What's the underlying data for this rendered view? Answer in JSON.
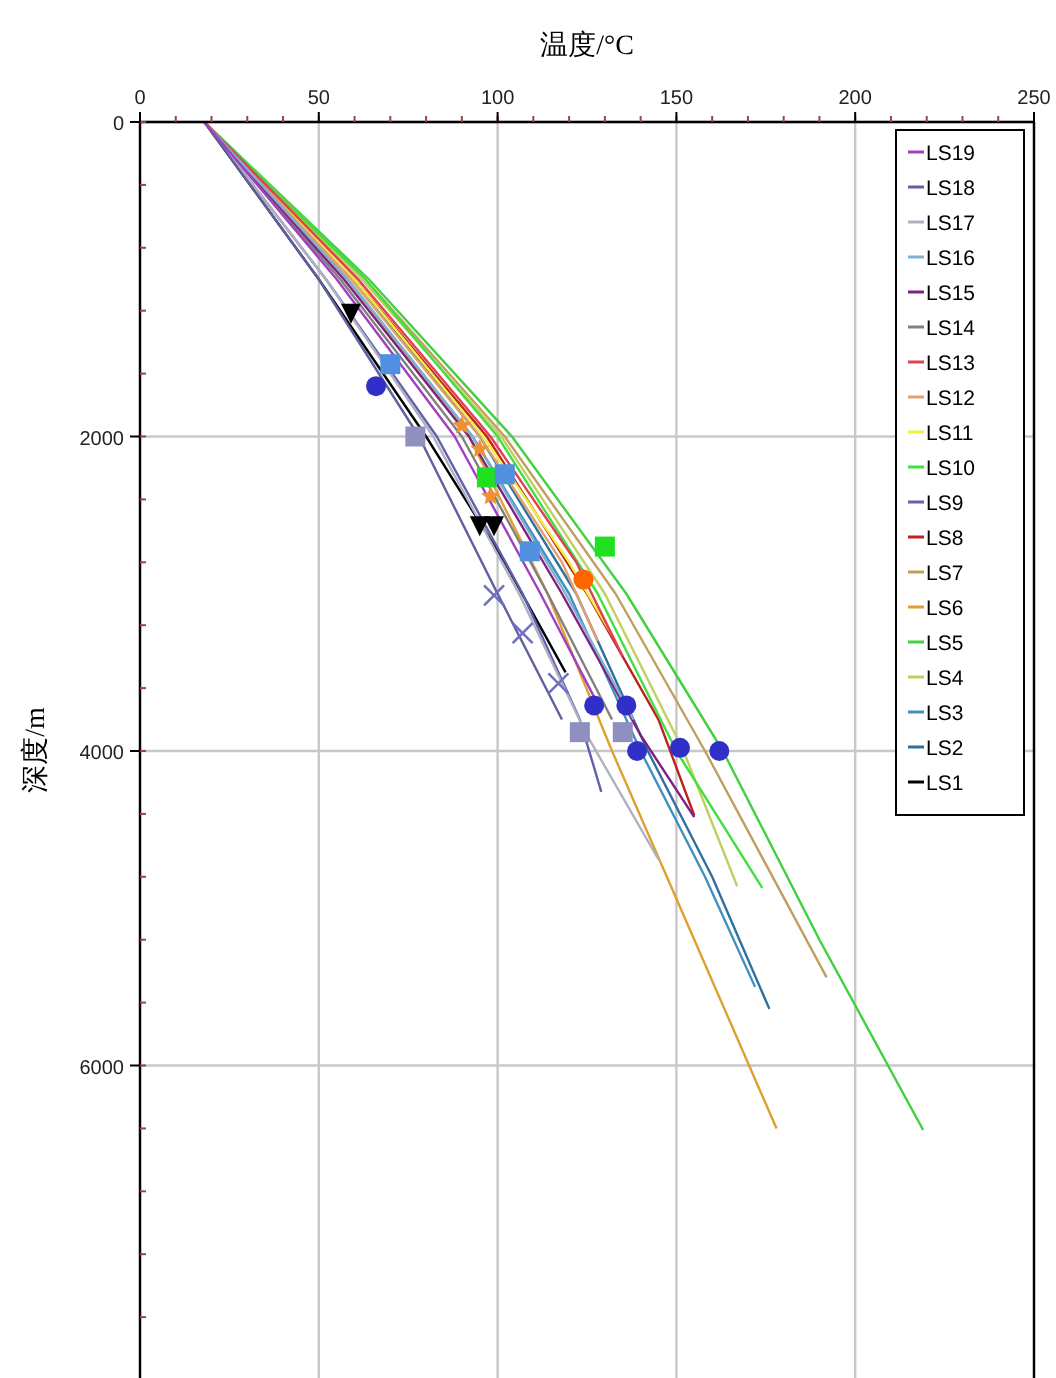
{
  "chart_data": {
    "type": "line",
    "xlabel": "温度/°C",
    "ylabel": "深度/m",
    "xlim": [
      0,
      250
    ],
    "xticks": [
      0,
      50,
      100,
      150,
      200,
      250
    ],
    "ylim": [
      8000,
      0
    ],
    "yticks": [
      0,
      2000,
      4000,
      6000
    ],
    "grid": true,
    "legend": "top right",
    "series": [
      {
        "name": "LS1",
        "color": "#000000",
        "x": [
          18,
          50,
          80,
          102,
          119
        ],
        "values": [
          0,
          1000,
          2000,
          2800,
          3500
        ]
      },
      {
        "name": "LS2",
        "color": "#3070a0",
        "x": [
          18,
          60,
          95,
          122,
          142,
          160,
          176
        ],
        "values": [
          0,
          1000,
          2000,
          3000,
          4000,
          4800,
          5640
        ]
      },
      {
        "name": "LS3",
        "color": "#4090c0",
        "x": [
          18,
          58,
          93,
          120,
          140,
          158,
          172
        ],
        "values": [
          0,
          1000,
          2000,
          3000,
          4000,
          4800,
          5500
        ]
      },
      {
        "name": "LS4",
        "color": "#c0d060",
        "x": [
          18,
          62,
          101,
          130,
          152,
          167
        ],
        "values": [
          0,
          1000,
          2000,
          3000,
          4000,
          4860
        ]
      },
      {
        "name": "LS5",
        "color": "#40d040",
        "x": [
          18,
          64,
          104,
          136,
          163,
          190,
          219
        ],
        "values": [
          0,
          1000,
          2000,
          3000,
          4000,
          5200,
          6410
        ]
      },
      {
        "name": "LS6",
        "color": "#e0a030",
        "x": [
          18,
          58,
          92,
          114,
          132,
          155,
          178
        ],
        "values": [
          0,
          1000,
          2000,
          3000,
          4000,
          5200,
          6400
        ]
      },
      {
        "name": "LS7",
        "color": "#c0a060",
        "x": [
          18,
          63,
          102,
          133,
          158,
          192
        ],
        "values": [
          0,
          1000,
          2000,
          3000,
          4000,
          5440
        ]
      },
      {
        "name": "LS8",
        "color": "#c02020",
        "x": [
          18,
          60,
          97,
          125,
          145,
          155
        ],
        "values": [
          0,
          1000,
          2000,
          3000,
          3800,
          4410
        ]
      },
      {
        "name": "LS9",
        "color": "#6060b0",
        "x": [
          18,
          52,
          83,
          107,
          123,
          129
        ],
        "values": [
          0,
          1000,
          2000,
          3000,
          3800,
          4260
        ]
      },
      {
        "name": "LS10",
        "color": "#40e040",
        "x": [
          18,
          63,
          100,
          128,
          150,
          174
        ],
        "values": [
          0,
          1000,
          2000,
          3000,
          4000,
          4870
        ]
      },
      {
        "name": "LS11",
        "color": "#f0f040",
        "x": [
          18,
          60,
          96,
          120,
          133
        ],
        "values": [
          0,
          1000,
          2000,
          2800,
          3300
        ]
      },
      {
        "name": "LS12",
        "color": "#e0a070",
        "x": [
          18,
          59,
          95,
          118,
          128
        ],
        "values": [
          0,
          1000,
          2000,
          2800,
          3300
        ]
      },
      {
        "name": "LS13",
        "color": "#e04050",
        "x": [
          18,
          61,
          98,
          122,
          135
        ],
        "values": [
          0,
          1000,
          2000,
          2800,
          3400
        ]
      },
      {
        "name": "LS14",
        "color": "#808080",
        "x": [
          18,
          56,
          90,
          114,
          132
        ],
        "values": [
          0,
          1000,
          2000,
          3000,
          3800
        ]
      },
      {
        "name": "LS15",
        "color": "#802080",
        "x": [
          18,
          57,
          92,
          118,
          140,
          155
        ],
        "values": [
          0,
          1000,
          2000,
          3000,
          3900,
          4420
        ]
      },
      {
        "name": "LS16",
        "color": "#80b0d0",
        "x": [
          18,
          58,
          93,
          119,
          138
        ],
        "values": [
          0,
          1000,
          2000,
          3000,
          3800
        ]
      },
      {
        "name": "LS17",
        "color": "#b0b0c0",
        "x": [
          18,
          52,
          82,
          106,
          125,
          145
        ],
        "values": [
          0,
          1000,
          2000,
          3000,
          3900,
          4690
        ]
      },
      {
        "name": "LS18",
        "color": "#6060a0",
        "x": [
          18,
          50,
          78,
          100,
          118
        ],
        "values": [
          0,
          1000,
          2000,
          3000,
          3800
        ]
      },
      {
        "name": "LS19",
        "color": "#a040c0",
        "x": [
          18,
          55,
          88,
          112,
          128
        ],
        "values": [
          0,
          1000,
          2000,
          3000,
          3700
        ]
      },
      {
        "type": "scatter",
        "marker": "circle",
        "color": "#3030c8",
        "x": [
          66,
          127,
          136,
          139,
          151,
          162
        ],
        "values": [
          1680,
          3710,
          3710,
          4000,
          3980,
          4000
        ]
      },
      {
        "type": "scatter",
        "marker": "triangle",
        "color": "#000000",
        "x": [
          59,
          95,
          99
        ],
        "values": [
          1220,
          2570,
          2570
        ]
      },
      {
        "type": "scatter",
        "marker": "square",
        "color": "#20e020",
        "x": [
          97,
          130
        ],
        "values": [
          2260,
          2700
        ]
      },
      {
        "type": "scatter",
        "marker": "square",
        "color": "#5090e0",
        "x": [
          70,
          102,
          109
        ],
        "values": [
          1540,
          2240,
          2730
        ]
      },
      {
        "type": "scatter",
        "marker": "circle",
        "color": "#ff6600",
        "x": [
          124
        ],
        "values": [
          2910
        ]
      },
      {
        "type": "scatter",
        "marker": "star",
        "color": "#f09030",
        "x": [
          90,
          95,
          98
        ],
        "values": [
          1930,
          2080,
          2380
        ]
      },
      {
        "type": "scatter",
        "marker": "square",
        "color": "#9090c0",
        "x": [
          77,
          123,
          135
        ],
        "values": [
          2000,
          3880,
          3880
        ]
      },
      {
        "type": "scatter",
        "marker": "cross",
        "color": "#7070c0",
        "x": [
          99,
          107,
          117
        ],
        "values": [
          3010,
          3250,
          3570
        ]
      }
    ]
  }
}
